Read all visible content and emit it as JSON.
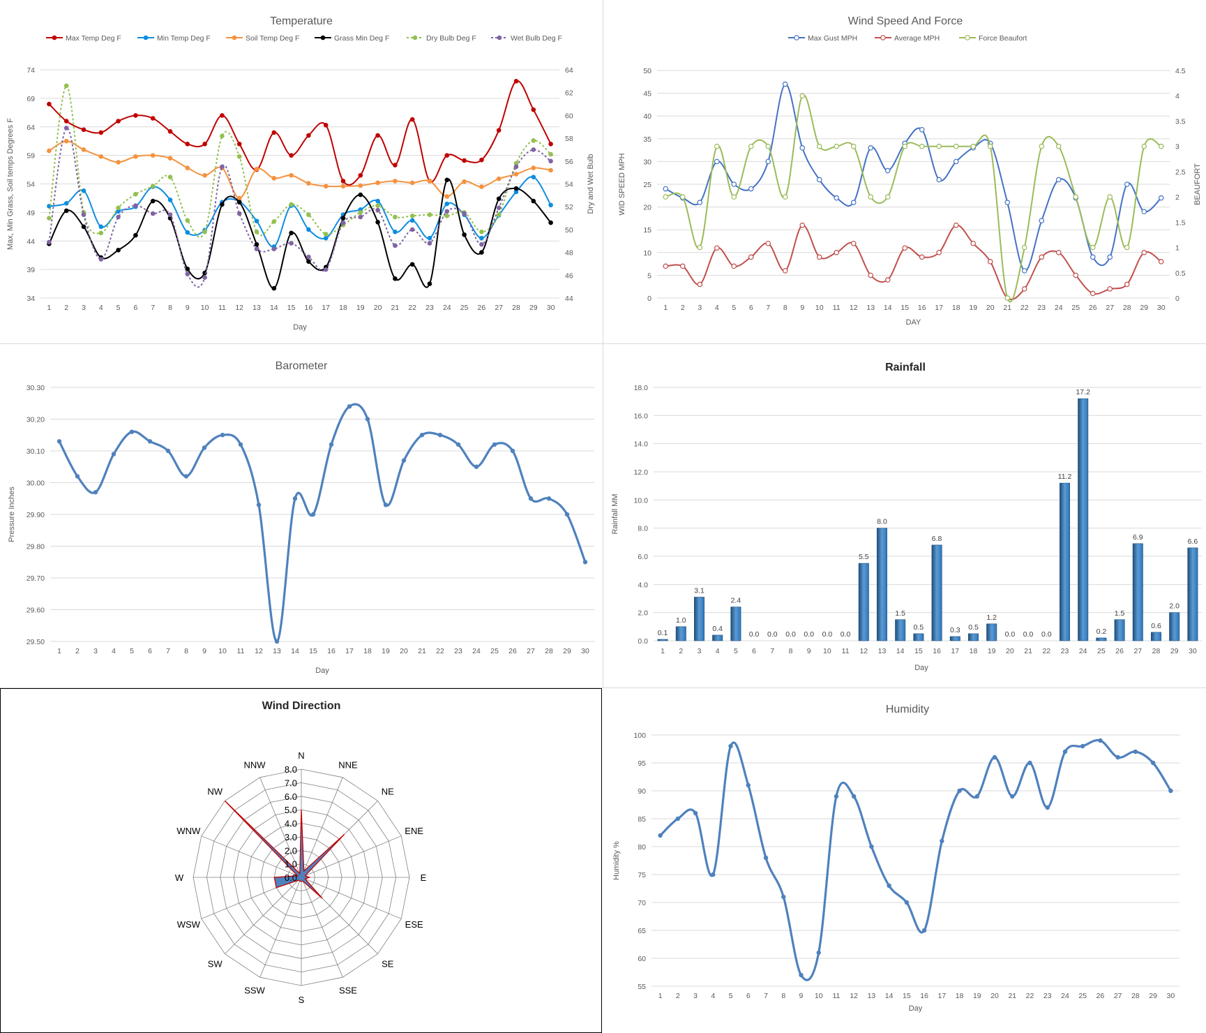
{
  "chart_data": [
    {
      "type": "line",
      "title": "Temperature",
      "xlabel": "Day",
      "ylabel": "Max, Min Grass, Soil temps Degrees F",
      "y2label": "Dry and Wet Bulb",
      "ylim": [
        34,
        74
      ],
      "yticks": [
        34,
        39,
        44,
        49,
        54,
        59,
        64,
        69,
        74
      ],
      "y2lim": [
        44,
        64
      ],
      "y2ticks": [
        44,
        46,
        48,
        50,
        52,
        54,
        56,
        58,
        60,
        62,
        64
      ],
      "x": [
        1,
        2,
        3,
        4,
        5,
        6,
        7,
        8,
        9,
        10,
        11,
        12,
        13,
        14,
        15,
        16,
        17,
        18,
        19,
        20,
        21,
        22,
        23,
        24,
        25,
        26,
        27,
        28,
        29,
        30
      ],
      "legend_position": "top",
      "grid": true,
      "series": [
        {
          "name": "Max Temp Deg F",
          "color": "#c00000",
          "axis": "left",
          "dash": false,
          "values": [
            68,
            65,
            63.5,
            63,
            65,
            66,
            65.5,
            63.2,
            61,
            61,
            66,
            61,
            56.5,
            63,
            59,
            62.5,
            64.3,
            54.5,
            55.5,
            62.5,
            57.3,
            65.3,
            54.5,
            59,
            58.1,
            58.2,
            63.4,
            72,
            67,
            61
          ]
        },
        {
          "name": "Min Temp Deg F",
          "color": "#0e8de0",
          "axis": "left",
          "dash": false,
          "values": [
            50.1,
            50.6,
            52.8,
            46.5,
            49.2,
            50,
            53.5,
            51.2,
            45.5,
            45.9,
            50.8,
            50.9,
            47.5,
            43,
            50.2,
            46,
            44.5,
            48.6,
            49.5,
            51,
            45.6,
            47.6,
            44.5,
            50.5,
            48.6,
            44.5,
            48.5,
            52.6,
            55.2,
            50.3
          ]
        },
        {
          "name": "Soil Temp Deg F",
          "color": "#f5923e",
          "axis": "left",
          "dash": false,
          "values": [
            59.8,
            61.5,
            60,
            58.8,
            57.8,
            58.8,
            59,
            58.5,
            56.8,
            55.5,
            56.8,
            51.5,
            56.6,
            55,
            55.5,
            54.1,
            53.6,
            53.6,
            53.7,
            54.2,
            54.5,
            54.2,
            54.5,
            51.8,
            54.4,
            53.5,
            54.9,
            55.7,
            56.8,
            56.4
          ]
        },
        {
          "name": "Grass Min Deg F",
          "color": "#000000",
          "axis": "left",
          "dash": false,
          "values": [
            43.5,
            49.3,
            46.5,
            41.1,
            42.4,
            45,
            51,
            48,
            39.1,
            38.4,
            50.4,
            50.8,
            43.4,
            35.7,
            45.4,
            40.4,
            39.4,
            48,
            52.1,
            47.3,
            37.4,
            39.9,
            36.5,
            54.7,
            45.1,
            42,
            51.4,
            53.2,
            51,
            47.2
          ]
        },
        {
          "name": "Dry Bulb Deg F",
          "color": "#92c050",
          "axis": "right",
          "dash": true,
          "values": [
            51,
            62.6,
            51.5,
            49.7,
            51.9,
            53.1,
            53.8,
            54.6,
            50.8,
            49.8,
            58.2,
            56.4,
            49.8,
            50.7,
            52.2,
            51.3,
            49.6,
            50.4,
            51.5,
            52.1,
            51.1,
            51.2,
            51.3,
            51.2,
            51.5,
            49.8,
            51.3,
            55.8,
            57.8,
            56.6
          ]
        },
        {
          "name": "Wet Bulb Deg F",
          "color": "#8064a2",
          "axis": "right",
          "dash": true,
          "values": [
            48.9,
            58.9,
            51.3,
            47.4,
            51.1,
            52.1,
            51.4,
            51.3,
            46.1,
            45.8,
            55.5,
            51.4,
            48.3,
            48.3,
            48.8,
            47.6,
            46.5,
            50.6,
            51.1,
            51.7,
            48.6,
            50,
            48.8,
            51.6,
            51.4,
            48.7,
            51.9,
            55.5,
            57,
            56
          ]
        }
      ]
    },
    {
      "type": "line",
      "title": "Wind Speed And Force",
      "xlabel": "DAY",
      "ylabel": "WID SPEED MPH",
      "y2label": "BEAUFORT",
      "ylim": [
        0,
        50
      ],
      "yticks": [
        0,
        5,
        10,
        15,
        20,
        25,
        30,
        35,
        40,
        45,
        50
      ],
      "y2lim": [
        0,
        4.5
      ],
      "y2ticks": [
        "0",
        "0.5",
        "1",
        "1.5",
        "2",
        "2.5",
        "3",
        "3.5",
        "4",
        "4.5"
      ],
      "x": [
        1,
        2,
        3,
        4,
        5,
        6,
        7,
        8,
        9,
        10,
        11,
        12,
        13,
        14,
        15,
        16,
        17,
        18,
        19,
        20,
        21,
        22,
        23,
        24,
        25,
        26,
        27,
        28,
        29,
        30
      ],
      "legend_position": "top",
      "grid": true,
      "series": [
        {
          "name": "Max Gust MPH",
          "color": "#4472c4",
          "axis": "left",
          "values": [
            24,
            22,
            21,
            30,
            25,
            24,
            30,
            47,
            33,
            26,
            22,
            21,
            33,
            28,
            34,
            37,
            26,
            30,
            33,
            34,
            21,
            6,
            17,
            26,
            22,
            9,
            9,
            25,
            19,
            22
          ]
        },
        {
          "name": "Average MPH",
          "color": "#c0504d",
          "axis": "left",
          "values": [
            7,
            7,
            3,
            11,
            7,
            9,
            12,
            6,
            16,
            9,
            10,
            12,
            5,
            4,
            11,
            9,
            10,
            16,
            12,
            8,
            0,
            2,
            9,
            10,
            5,
            1,
            2,
            3,
            10,
            8
          ]
        },
        {
          "name": "Force Beaufort",
          "color": "#9bbb59",
          "axis": "right",
          "values": [
            2,
            2,
            1,
            3,
            2,
            3,
            3,
            2,
            4,
            3,
            3,
            3,
            2,
            2,
            3,
            3,
            3,
            3,
            3,
            3,
            0,
            1,
            3,
            3,
            2,
            1,
            2,
            1,
            3,
            3
          ]
        }
      ]
    },
    {
      "type": "line",
      "title": "Barometer",
      "xlabel": "Day",
      "ylabel": "Pressure Inches",
      "ylim": [
        29.5,
        30.3
      ],
      "yticks": [
        "29.50",
        "29.60",
        "29.70",
        "29.80",
        "29.90",
        "30.00",
        "30.10",
        "30.20",
        "30.30"
      ],
      "x": [
        1,
        2,
        3,
        4,
        5,
        6,
        7,
        8,
        9,
        10,
        11,
        12,
        13,
        14,
        15,
        16,
        17,
        18,
        19,
        20,
        21,
        22,
        23,
        24,
        25,
        26,
        27,
        28,
        29,
        30
      ],
      "grid": true,
      "series": [
        {
          "name": "",
          "color": "#4f81bd",
          "values": [
            30.13,
            30.02,
            29.97,
            30.09,
            30.16,
            30.13,
            30.1,
            30.02,
            30.11,
            30.15,
            30.12,
            29.93,
            29.5,
            29.95,
            29.9,
            30.12,
            30.24,
            30.2,
            29.93,
            30.07,
            30.15,
            30.15,
            30.12,
            30.05,
            30.12,
            30.1,
            29.95,
            29.95,
            29.9,
            29.75
          ]
        }
      ]
    },
    {
      "type": "bar",
      "title": "Rainfall",
      "xlabel": "Day",
      "ylabel": "Rainfall MM",
      "ylim": [
        0,
        18
      ],
      "yticks": [
        "0.0",
        "2.0",
        "4.0",
        "6.0",
        "8.0",
        "10.0",
        "12.0",
        "14.0",
        "16.0",
        "18.0"
      ],
      "categories": [
        "1",
        "2",
        "3",
        "4",
        "5",
        "6",
        "7",
        "8",
        "9",
        "10",
        "11",
        "12",
        "13",
        "14",
        "15",
        "16",
        "17",
        "18",
        "19",
        "20",
        "21",
        "22",
        "23",
        "24",
        "25",
        "26",
        "27",
        "28",
        "29",
        "30"
      ],
      "values": [
        0.1,
        1.0,
        3.1,
        0.4,
        2.4,
        0.0,
        0.0,
        0.0,
        0.0,
        0.0,
        0.0,
        5.5,
        8.0,
        1.5,
        0.5,
        6.8,
        0.3,
        0.5,
        1.2,
        0.0,
        0.0,
        0.0,
        11.2,
        17.2,
        0.2,
        1.5,
        6.9,
        0.6,
        2.0,
        6.6
      ],
      "labels": [
        "0.1",
        "1.0",
        "3.1",
        "0.4",
        "2.4",
        "0.0",
        "0.0",
        "0.0",
        "0.0",
        "0.0",
        "0.0",
        "5.5",
        "8.0",
        "1.5",
        "0.5",
        "6.8",
        "0.3",
        "0.5",
        "1.2",
        "0.0",
        "0.0",
        "0.0",
        "11.2",
        "17.2",
        "0.2",
        "1.5",
        "6.9",
        "0.6",
        "2.0",
        "6.6"
      ],
      "color": "#2e75b6",
      "grid": true
    },
    {
      "type": "radar",
      "title": "Wind Direction",
      "directions": [
        "N",
        "NNE",
        "NE",
        "ENE",
        "E",
        "ESE",
        "SE",
        "SSE",
        "S",
        "SSW",
        "SW",
        "WSW",
        "W",
        "WNW",
        "NW",
        "NNW"
      ],
      "rlim": [
        0,
        8
      ],
      "rticks": [
        "0.0",
        "1.0",
        "2.0",
        "3.0",
        "4.0",
        "5.0",
        "6.0",
        "7.0",
        "8.0"
      ],
      "series": [
        {
          "name": "",
          "color": "#4f81bd",
          "stroke": "#c00000",
          "values": [
            5.0,
            0.5,
            4.5,
            0.3,
            0.6,
            0.3,
            2.2,
            0.3,
            0.3,
            0.3,
            0.3,
            2.0,
            2.0,
            0.3,
            8.0,
            0.3
          ]
        }
      ]
    },
    {
      "type": "line",
      "title": "Humidity",
      "xlabel": "Day",
      "ylabel": "Humidity %",
      "ylim": [
        55,
        100
      ],
      "yticks": [
        55,
        60,
        65,
        70,
        75,
        80,
        85,
        90,
        95,
        100
      ],
      "x": [
        1,
        2,
        3,
        4,
        5,
        6,
        7,
        8,
        9,
        10,
        11,
        12,
        13,
        14,
        15,
        16,
        17,
        18,
        19,
        20,
        21,
        22,
        23,
        24,
        25,
        26,
        27,
        28,
        29,
        30
      ],
      "grid": true,
      "series": [
        {
          "name": "",
          "color": "#4f81bd",
          "values": [
            82,
            85,
            86,
            75,
            98,
            91,
            78,
            71,
            57,
            61,
            89,
            89,
            80,
            73,
            70,
            65,
            81,
            90,
            89,
            96,
            89,
            95,
            87,
            97,
            98,
            99,
            96,
            97,
            95,
            90
          ]
        }
      ]
    }
  ]
}
